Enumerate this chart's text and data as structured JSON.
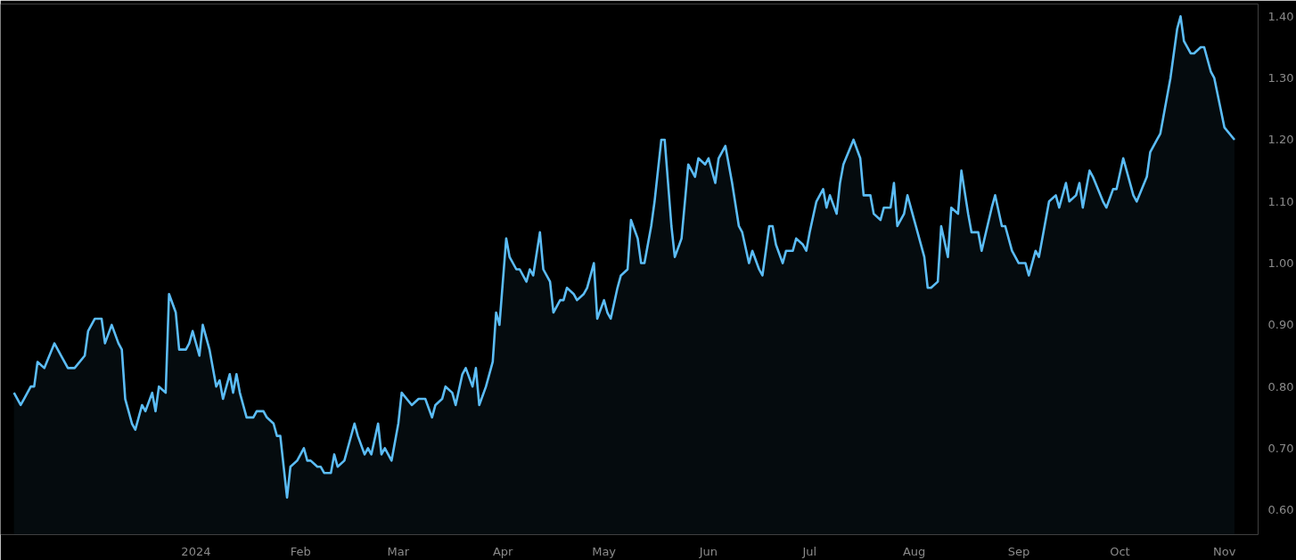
{
  "chart_data": {
    "type": "area",
    "xlim": [
      "2023-11-04",
      "2024-11-11"
    ],
    "ylim": [
      0.56,
      1.42
    ],
    "xticks": [
      {
        "value": "2024-01-01",
        "label": "2024"
      },
      {
        "value": "2024-02-01",
        "label": "Feb"
      },
      {
        "value": "2024-03-01",
        "label": "Mar"
      },
      {
        "value": "2024-04-01",
        "label": "Apr"
      },
      {
        "value": "2024-05-01",
        "label": "May"
      },
      {
        "value": "2024-06-01",
        "label": "Jun"
      },
      {
        "value": "2024-07-01",
        "label": "Jul"
      },
      {
        "value": "2024-08-01",
        "label": "Aug"
      },
      {
        "value": "2024-09-01",
        "label": "Sep"
      },
      {
        "value": "2024-10-01",
        "label": "Oct"
      },
      {
        "value": "2024-11-01",
        "label": "Nov"
      }
    ],
    "yticks": [
      {
        "value": 0.6,
        "label": "0.60"
      },
      {
        "value": 0.7,
        "label": "0.70"
      },
      {
        "value": 0.8,
        "label": "0.80"
      },
      {
        "value": 0.9,
        "label": "0.90"
      },
      {
        "value": 1.0,
        "label": "1.00"
      },
      {
        "value": 1.1,
        "label": "1.10"
      },
      {
        "value": 1.2,
        "label": "1.20"
      },
      {
        "value": 1.3,
        "label": "1.30"
      },
      {
        "value": 1.4,
        "label": "1.40"
      }
    ],
    "grid": false,
    "marker": "none",
    "line_style": "solid",
    "x": [
      "2023-11-08",
      "2023-11-10",
      "2023-11-11",
      "2023-11-13",
      "2023-11-14",
      "2023-11-15",
      "2023-11-17",
      "2023-11-20",
      "2023-11-22",
      "2023-11-24",
      "2023-11-26",
      "2023-11-29",
      "2023-11-30",
      "2023-12-02",
      "2023-12-04",
      "2023-12-05",
      "2023-12-07",
      "2023-12-09",
      "2023-12-10",
      "2023-12-11",
      "2023-12-13",
      "2023-12-14",
      "2023-12-16",
      "2023-12-17",
      "2023-12-19",
      "2023-12-20",
      "2023-12-21",
      "2023-12-23",
      "2023-12-24",
      "2023-12-26",
      "2023-12-27",
      "2023-12-29",
      "2023-12-30",
      "2023-12-31",
      "2024-01-02",
      "2024-01-03",
      "2024-01-05",
      "2024-01-07",
      "2024-01-08",
      "2024-01-09",
      "2024-01-11",
      "2024-01-12",
      "2024-01-13",
      "2024-01-14",
      "2024-01-16",
      "2024-01-18",
      "2024-01-19",
      "2024-01-21",
      "2024-01-22",
      "2024-01-24",
      "2024-01-25",
      "2024-01-26",
      "2024-01-28",
      "2024-01-29",
      "2024-01-31",
      "2024-02-02",
      "2024-02-03",
      "2024-02-04",
      "2024-02-06",
      "2024-02-07",
      "2024-02-08",
      "2024-02-10",
      "2024-02-11",
      "2024-02-12",
      "2024-02-14",
      "2024-02-15",
      "2024-02-17",
      "2024-02-18",
      "2024-02-20",
      "2024-02-21",
      "2024-02-22",
      "2024-02-24",
      "2024-02-25",
      "2024-02-26",
      "2024-02-28",
      "2024-03-01",
      "2024-03-02",
      "2024-03-05",
      "2024-03-07",
      "2024-03-09",
      "2024-03-11",
      "2024-03-12",
      "2024-03-14",
      "2024-03-15",
      "2024-03-17",
      "2024-03-18",
      "2024-03-20",
      "2024-03-21",
      "2024-03-23",
      "2024-03-24",
      "2024-03-25",
      "2024-03-27",
      "2024-03-29",
      "2024-03-30",
      "2024-03-31",
      "2024-04-02",
      "2024-04-03",
      "2024-04-05",
      "2024-04-06",
      "2024-04-08",
      "2024-04-09",
      "2024-04-10",
      "2024-04-12",
      "2024-04-13",
      "2024-04-15",
      "2024-04-16",
      "2024-04-18",
      "2024-04-19",
      "2024-04-20",
      "2024-04-22",
      "2024-04-23",
      "2024-04-25",
      "2024-04-26",
      "2024-04-28",
      "2024-04-29",
      "2024-05-01",
      "2024-05-02",
      "2024-05-03",
      "2024-05-05",
      "2024-05-06",
      "2024-05-08",
      "2024-05-09",
      "2024-05-11",
      "2024-05-12",
      "2024-05-13",
      "2024-05-15",
      "2024-05-16",
      "2024-05-18",
      "2024-05-19",
      "2024-05-21",
      "2024-05-22",
      "2024-05-24",
      "2024-05-25",
      "2024-05-26",
      "2024-05-28",
      "2024-05-29",
      "2024-05-31",
      "2024-06-01",
      "2024-06-03",
      "2024-06-04",
      "2024-06-06",
      "2024-06-08",
      "2024-06-10",
      "2024-06-11",
      "2024-06-13",
      "2024-06-14",
      "2024-06-16",
      "2024-06-17",
      "2024-06-19",
      "2024-06-20",
      "2024-06-21",
      "2024-06-23",
      "2024-06-24",
      "2024-06-26",
      "2024-06-27",
      "2024-06-29",
      "2024-06-30",
      "2024-07-01",
      "2024-07-03",
      "2024-07-05",
      "2024-07-06",
      "2024-07-07",
      "2024-07-09",
      "2024-07-10",
      "2024-07-11",
      "2024-07-14",
      "2024-07-16",
      "2024-07-17",
      "2024-07-19",
      "2024-07-20",
      "2024-07-22",
      "2024-07-23",
      "2024-07-25",
      "2024-07-26",
      "2024-07-27",
      "2024-07-29",
      "2024-07-30",
      "2024-08-01",
      "2024-08-04",
      "2024-08-05",
      "2024-08-06",
      "2024-08-08",
      "2024-08-09",
      "2024-08-11",
      "2024-08-12",
      "2024-08-14",
      "2024-08-15",
      "2024-08-17",
      "2024-08-18",
      "2024-08-20",
      "2024-08-21",
      "2024-08-24",
      "2024-08-25",
      "2024-08-27",
      "2024-08-28",
      "2024-08-30",
      "2024-09-01",
      "2024-09-03",
      "2024-09-04",
      "2024-09-06",
      "2024-09-07",
      "2024-09-10",
      "2024-09-12",
      "2024-09-13",
      "2024-09-15",
      "2024-09-16",
      "2024-09-18",
      "2024-09-19",
      "2024-09-20",
      "2024-09-22",
      "2024-09-23",
      "2024-09-26",
      "2024-09-27",
      "2024-09-29",
      "2024-09-30",
      "2024-10-02",
      "2024-10-03",
      "2024-10-05",
      "2024-10-06",
      "2024-10-09",
      "2024-10-10",
      "2024-10-12",
      "2024-10-13",
      "2024-10-16",
      "2024-10-18",
      "2024-10-19",
      "2024-10-20",
      "2024-10-22",
      "2024-10-23",
      "2024-10-25",
      "2024-10-26",
      "2024-10-28",
      "2024-10-29",
      "2024-11-01",
      "2024-11-04"
    ],
    "series": [
      {
        "color": "#5bbcf5",
        "values": [
          0.79,
          0.77,
          0.78,
          0.8,
          0.8,
          0.84,
          0.83,
          0.87,
          0.85,
          0.83,
          0.83,
          0.85,
          0.89,
          0.91,
          0.91,
          0.87,
          0.9,
          0.87,
          0.86,
          0.78,
          0.74,
          0.73,
          0.77,
          0.76,
          0.79,
          0.76,
          0.8,
          0.79,
          0.95,
          0.92,
          0.86,
          0.86,
          0.87,
          0.89,
          0.85,
          0.9,
          0.86,
          0.8,
          0.81,
          0.78,
          0.82,
          0.79,
          0.82,
          0.79,
          0.75,
          0.75,
          0.76,
          0.76,
          0.75,
          0.74,
          0.72,
          0.72,
          0.62,
          0.67,
          0.68,
          0.7,
          0.68,
          0.68,
          0.67,
          0.67,
          0.66,
          0.66,
          0.69,
          0.67,
          0.68,
          0.7,
          0.74,
          0.72,
          0.69,
          0.7,
          0.69,
          0.74,
          0.69,
          0.7,
          0.68,
          0.74,
          0.79,
          0.77,
          0.78,
          0.78,
          0.75,
          0.77,
          0.78,
          0.8,
          0.79,
          0.77,
          0.82,
          0.83,
          0.8,
          0.83,
          0.77,
          0.8,
          0.84,
          0.92,
          0.9,
          1.04,
          1.01,
          0.99,
          0.99,
          0.97,
          0.99,
          0.98,
          1.05,
          0.99,
          0.97,
          0.92,
          0.94,
          0.94,
          0.96,
          0.95,
          0.94,
          0.95,
          0.96,
          1.0,
          0.91,
          0.94,
          0.92,
          0.91,
          0.96,
          0.98,
          0.99,
          1.07,
          1.04,
          1.0,
          1.0,
          1.06,
          1.1,
          1.2,
          1.2,
          1.06,
          1.01,
          1.04,
          1.1,
          1.16,
          1.14,
          1.17,
          1.16,
          1.17,
          1.13,
          1.17,
          1.19,
          1.13,
          1.06,
          1.05,
          1.0,
          1.02,
          0.99,
          0.98,
          1.06,
          1.06,
          1.03,
          1.0,
          1.02,
          1.02,
          1.04,
          1.03,
          1.02,
          1.05,
          1.1,
          1.12,
          1.09,
          1.11,
          1.08,
          1.13,
          1.16,
          1.2,
          1.17,
          1.11,
          1.11,
          1.08,
          1.07,
          1.09,
          1.09,
          1.13,
          1.06,
          1.08,
          1.11,
          1.07,
          1.01,
          0.96,
          0.96,
          0.97,
          1.06,
          1.01,
          1.09,
          1.08,
          1.15,
          1.08,
          1.05,
          1.05,
          1.02,
          1.09,
          1.11,
          1.06,
          1.06,
          1.02,
          1.0,
          1.0,
          0.98,
          1.02,
          1.01,
          1.1,
          1.11,
          1.09,
          1.13,
          1.1,
          1.11,
          1.13,
          1.09,
          1.15,
          1.14,
          1.1,
          1.09,
          1.12,
          1.12,
          1.17,
          1.15,
          1.11,
          1.1,
          1.14,
          1.18,
          1.2,
          1.21,
          1.3,
          1.38,
          1.4,
          1.36,
          1.34,
          1.34,
          1.35,
          1.35,
          1.31,
          1.3,
          1.22,
          1.2
        ]
      }
    ]
  }
}
